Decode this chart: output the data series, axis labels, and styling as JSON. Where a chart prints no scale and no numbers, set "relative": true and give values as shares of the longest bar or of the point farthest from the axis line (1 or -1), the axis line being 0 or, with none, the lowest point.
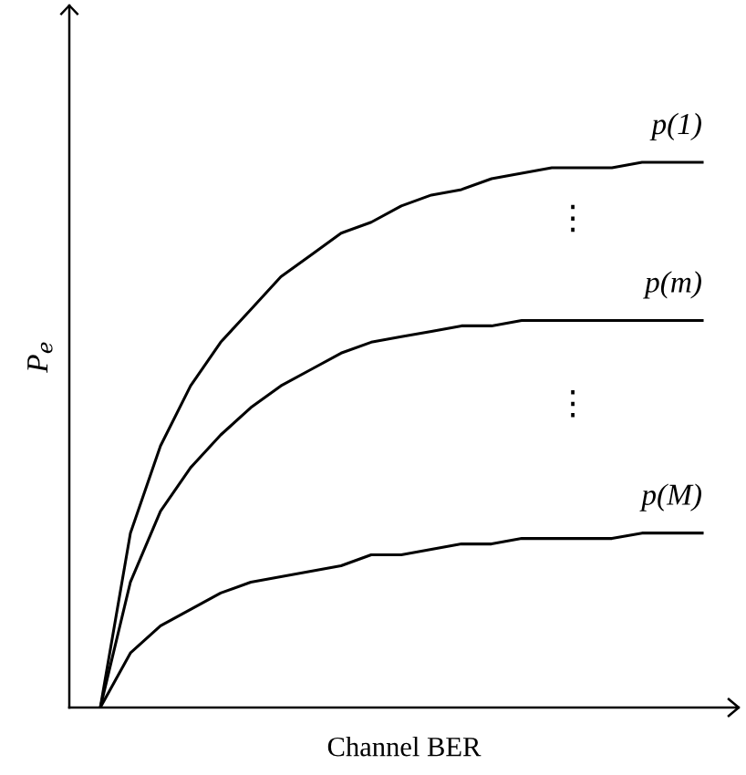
{
  "chart_data": {
    "type": "line",
    "relative": true,
    "xlabel": "Channel BER",
    "ylabel": "P$_{e}$",
    "categories": [
      null,
      null,
      null,
      null,
      null,
      null,
      null,
      null,
      null,
      null,
      null,
      null,
      null,
      null,
      null,
      null,
      null,
      null,
      null,
      null,
      null
    ],
    "series": [
      {
        "name": "p(1)",
        "color": "#000000",
        "values": [
          0,
          0.32,
          0.48,
          0.59,
          0.67,
          0.73,
          0.79,
          0.83,
          0.87,
          0.89,
          0.92,
          0.94,
          0.95,
          0.97,
          0.98,
          0.99,
          0.99,
          0.99,
          1.0,
          1.0,
          1.0
        ]
      },
      {
        "name": "p(m)",
        "color": "#000000",
        "values": [
          0,
          0.23,
          0.36,
          0.44,
          0.5,
          0.55,
          0.59,
          0.62,
          0.65,
          0.67,
          0.68,
          0.69,
          0.7,
          0.7,
          0.71,
          0.71,
          0.71,
          0.71,
          0.71,
          0.71,
          0.71
        ]
      },
      {
        "name": "p(M)",
        "color": "#000000",
        "values": [
          0,
          0.1,
          0.15,
          0.18,
          0.21,
          0.23,
          0.24,
          0.25,
          0.26,
          0.28,
          0.28,
          0.29,
          0.3,
          0.3,
          0.31,
          0.31,
          0.31,
          0.31,
          0.32,
          0.32,
          0.32
        ]
      }
    ],
    "annotations": [
      "⋮",
      "⋮"
    ],
    "legend": false,
    "grid": false,
    "marker": "none",
    "line_style": "solid"
  }
}
